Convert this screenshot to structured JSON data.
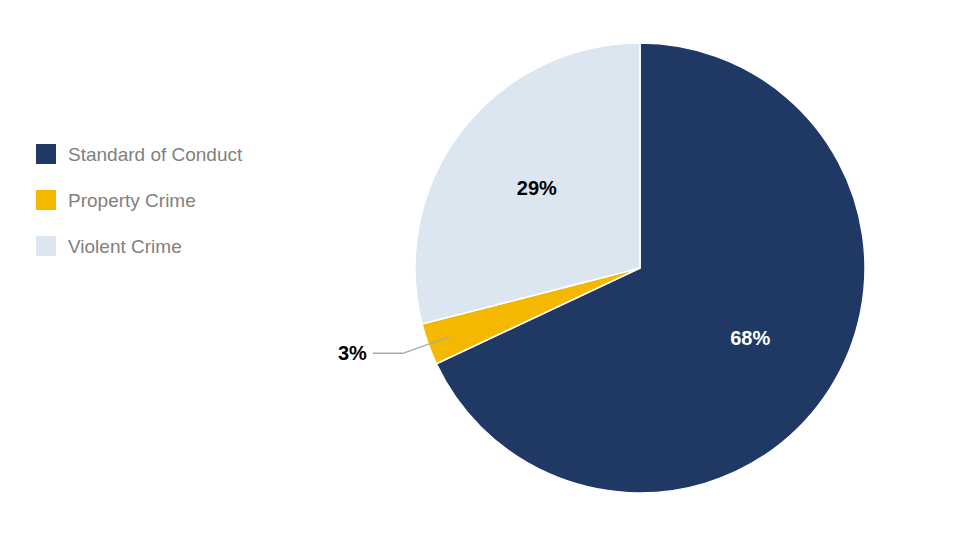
{
  "chart_data": {
    "type": "pie",
    "categories": [
      "Standard of Conduct",
      "Property Crime",
      "Violent Crime"
    ],
    "values": [
      68,
      3,
      29
    ],
    "value_labels": [
      "68%",
      "3%",
      "29%"
    ],
    "colors": [
      "#1f3864",
      "#f5b800",
      "#dce6f1"
    ],
    "data_labels": true,
    "legend": "left"
  }
}
